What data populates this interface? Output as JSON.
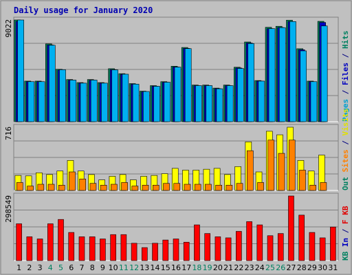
{
  "chart_data": {
    "type": "bar",
    "title": "Daily usage for January 2020",
    "categories": [
      "1",
      "2",
      "3",
      "4",
      "5",
      "6",
      "7",
      "8",
      "9",
      "10",
      "11",
      "12",
      "13",
      "14",
      "15",
      "16",
      "17",
      "18",
      "19",
      "20",
      "21",
      "22",
      "23",
      "24",
      "25",
      "26",
      "27",
      "28",
      "29",
      "30",
      "31"
    ],
    "weekend_days": [
      "4",
      "5",
      "11",
      "12",
      "18",
      "19",
      "25",
      "26"
    ],
    "panels": [
      {
        "id": "hits-files-pages",
        "ymax_label": "9022",
        "ymax": 9022,
        "legend": [
          {
            "key": "pages",
            "label": "Pages",
            "color": "#00a0d0"
          },
          {
            "key": "sep1",
            "label": "/",
            "color": "#000080"
          },
          {
            "key": "files",
            "label": "Files",
            "color": "#0000c0"
          },
          {
            "key": "sep2",
            "label": "/",
            "color": "#000080"
          },
          {
            "key": "hits",
            "label": "Hits",
            "color": "#008060"
          }
        ],
        "series": [
          {
            "name": "Hits",
            "color": "#00805a",
            "values": [
              9022,
              3600,
              3600,
              6900,
              4650,
              3740,
              3470,
              3740,
              3470,
              4700,
              4260,
              3380,
              2710,
              3200,
              3550,
              4920,
              6580,
              3250,
              3250,
              2980,
              3250,
              4830,
              7070,
              3650,
              8370,
              8460,
              9000,
              6470,
              3600,
              8900,
              0
            ]
          },
          {
            "name": "Files",
            "color": "#0000c0",
            "values": [
              8900,
              3550,
              3550,
              6800,
              4580,
              3680,
              3420,
              3680,
              3420,
              4620,
              4200,
              3330,
              2650,
              3150,
              3500,
              4850,
              6500,
              3200,
              3200,
              2930,
              3200,
              4760,
              6980,
              3600,
              8250,
              8350,
              8880,
              6380,
              3550,
              8800,
              0
            ]
          },
          {
            "name": "Pages",
            "color": "#00b0f0",
            "values": [
              9020,
              3550,
              3550,
              6780,
              4610,
              3690,
              3420,
              3690,
              3420,
              4600,
              4210,
              3330,
              2680,
              3140,
              3500,
              4840,
              6480,
              3200,
              3200,
              2920,
              3200,
              4720,
              6930,
              3600,
              8250,
              8340,
              8880,
              6280,
              3550,
              8490,
              0
            ]
          }
        ]
      },
      {
        "id": "visits-sites",
        "ymax_label": "716",
        "ymax": 716,
        "legend": [
          {
            "key": "kbout",
            "label": "Out",
            "color": "#008060"
          },
          {
            "key": "sites",
            "label": "Sites",
            "color": "#ff8000"
          },
          {
            "key": "sep3",
            "label": "/",
            "color": "#000080"
          },
          {
            "key": "visits",
            "label": "Visits",
            "color": "#e0e000"
          }
        ],
        "series": [
          {
            "name": "Visits",
            "color": "#ffff00",
            "values": [
              170,
              165,
              200,
              180,
              220,
              340,
              220,
              180,
              120,
              160,
              180,
              120,
              160,
              170,
              190,
              250,
              230,
              230,
              240,
              250,
              180,
              270,
              550,
              210,
              670,
              630,
              716,
              340,
              220,
              400,
              0
            ]
          },
          {
            "name": "Sites",
            "color": "#ff8000",
            "values": [
              90,
              50,
              70,
              70,
              60,
              210,
              130,
              80,
              60,
              70,
              90,
              50,
              60,
              60,
              80,
              80,
              70,
              70,
              70,
              60,
              60,
              80,
              450,
              90,
              570,
              420,
              570,
              230,
              60,
              90,
              0
            ]
          }
        ]
      },
      {
        "id": "kbytes",
        "ymax_label": "298549",
        "ymax": 298549,
        "legend": [
          {
            "key": "kb",
            "label": "KB",
            "color": "#008060"
          },
          {
            "key": "in",
            "label": "In",
            "color": "#0000c0"
          },
          {
            "key": "sep4",
            "label": "/",
            "color": "#000080"
          },
          {
            "key": "f",
            "label": "F",
            "color": "#e00000"
          },
          {
            "key": "kb2",
            "label": "KB",
            "color": "#e00000"
          }
        ],
        "series": [
          {
            "name": "KBytes",
            "color": "#ff0000",
            "values": [
              170000,
              110000,
              100000,
              170000,
              190000,
              130000,
              110000,
              110000,
              100000,
              120000,
              120000,
              80000,
              60000,
              80000,
              95000,
              100000,
              85000,
              165000,
              125000,
              110000,
              105000,
              135000,
              180000,
              165000,
              115000,
              125000,
              298549,
              210000,
              130000,
              105000,
              155000
            ]
          }
        ]
      }
    ]
  }
}
